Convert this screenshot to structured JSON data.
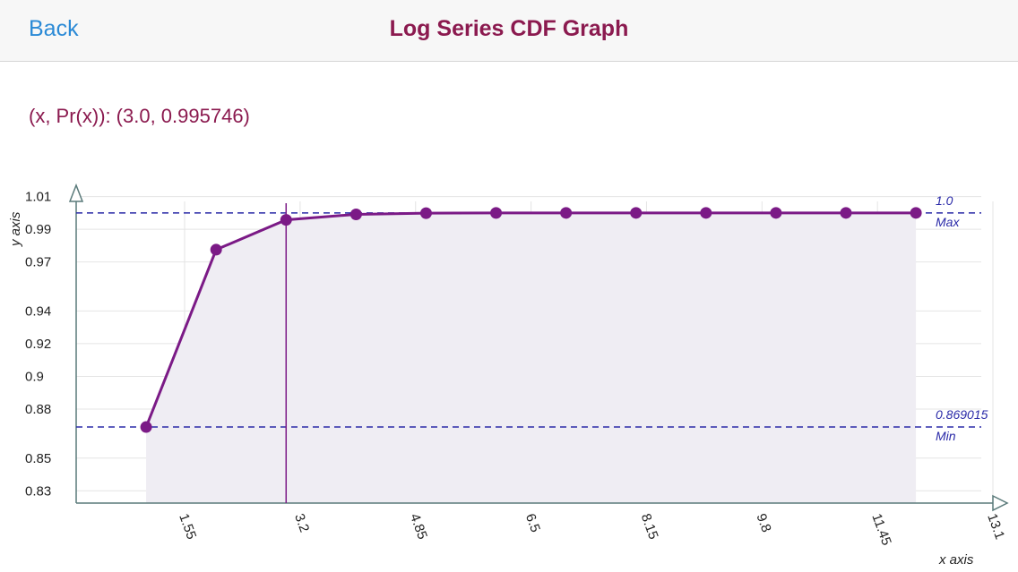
{
  "header": {
    "back_label": "Back",
    "title": "Log Series CDF Graph"
  },
  "readout": {
    "label": "(x, Pr(x)):",
    "value": "(3.0, 0.995746)"
  },
  "chart_data": {
    "type": "line",
    "xlabel": "x axis",
    "ylabel": "y axis",
    "xlim": [
      0,
      13.1
    ],
    "ylim": [
      0.8225,
      1.0125
    ],
    "x_ticks": [
      1.55,
      3.2,
      4.85,
      6.5,
      8.15,
      9.8,
      11.45,
      13.1
    ],
    "x_tick_labels": [
      "1.55",
      "3.2",
      "4.85",
      "6.5",
      "8.15",
      "9.8",
      "11.45",
      "13.1"
    ],
    "y_tick_labels": [
      "1.01",
      "0.99",
      "0.97",
      "0.94",
      "0.92",
      "0.9",
      "0.88",
      "0.85",
      "0.83"
    ],
    "y_tick_values": [
      1.01,
      0.99,
      0.97,
      0.94,
      0.92,
      0.9,
      0.88,
      0.85,
      0.83
    ],
    "series": [
      {
        "x": [
          1,
          2,
          3,
          4,
          5,
          6,
          7,
          8,
          9,
          10,
          11,
          12
        ],
        "y": [
          0.869015,
          0.9775,
          0.995746,
          0.9991,
          0.99985,
          0.99997,
          0.999995,
          0.999999,
          1.0,
          1.0,
          1.0,
          1.0
        ]
      }
    ],
    "reference_lines": [
      {
        "value_label": "1.0",
        "tag": "Max",
        "y": 1.0
      },
      {
        "value_label": "0.869015",
        "tag": "Min",
        "y": 0.869015
      }
    ],
    "selected_x": 3.0,
    "colors": {
      "line": "#7b1a86",
      "marker": "#7b1a86",
      "fill": "#efedf3",
      "reference": "#2a2aa8",
      "grid": "#e4e4e4",
      "axis": "#5a7a7a"
    },
    "grid": true
  }
}
